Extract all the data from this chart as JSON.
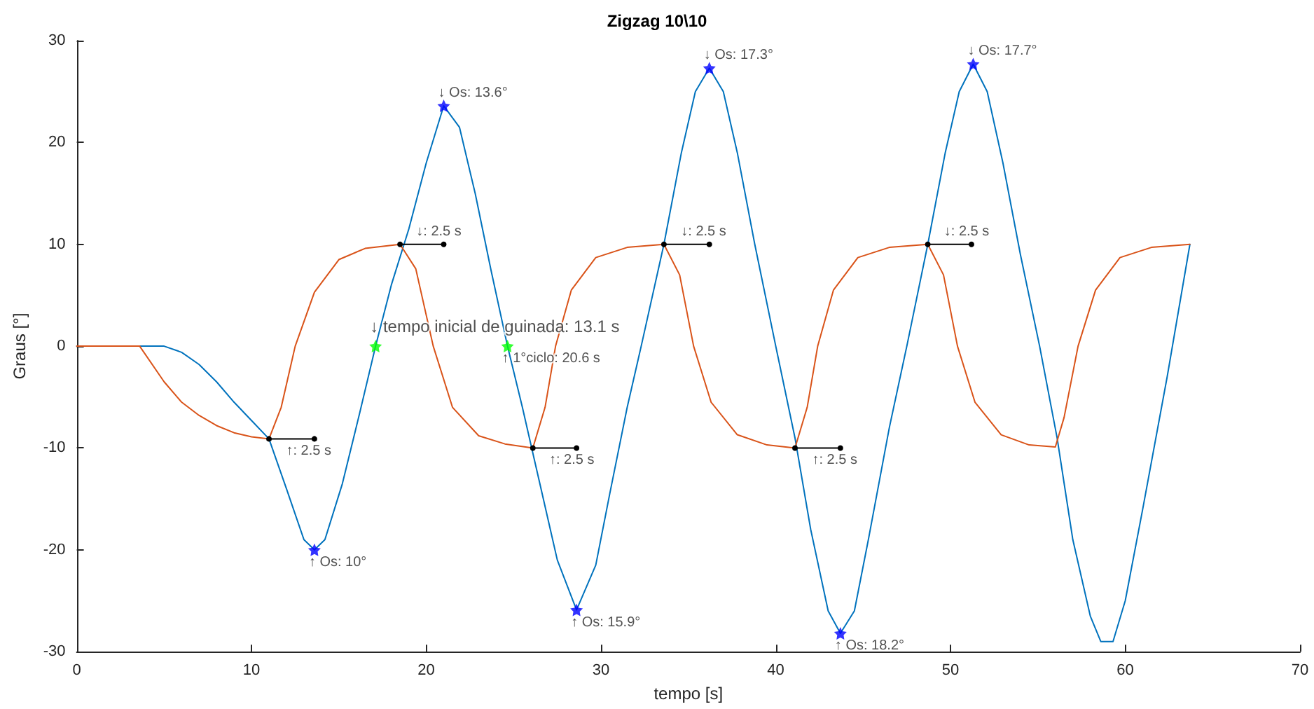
{
  "chart_data": {
    "type": "line",
    "title": "Zigzag 10\\10",
    "xlabel": "tempo [s]",
    "ylabel": "Graus [°]",
    "xlim": [
      0,
      70
    ],
    "xticks": [
      0,
      10,
      20,
      30,
      40,
      50,
      60,
      70
    ],
    "ylim": [
      -30,
      30
    ],
    "yticks": [
      -30,
      -20,
      -10,
      0,
      10,
      20,
      30
    ],
    "grid": false,
    "line_style": "solid",
    "series": [
      {
        "color": "#0072bd",
        "marker": "none",
        "x": [
          0,
          3,
          5,
          6,
          7,
          8,
          9,
          10,
          11,
          12,
          13,
          13.6,
          14.2,
          15.2,
          16.2,
          17.1,
          18,
          19,
          20,
          21,
          21.9,
          22.8,
          23.7,
          24.65,
          25.5,
          26.5,
          27.5,
          28.6,
          29.7,
          30.5,
          31.5,
          32.3,
          33.6,
          34.6,
          35.4,
          36.2,
          37,
          37.8,
          38.8,
          40,
          41.1,
          42,
          43,
          43.7,
          44.5,
          45.3,
          46.5,
          47.5,
          48.7,
          49.7,
          50.5,
          51.3,
          52.1,
          53,
          54,
          55.1,
          56.1,
          57,
          58,
          58.6,
          59.3,
          60,
          61,
          62.4,
          63.7
        ],
        "values": [
          0,
          0,
          0,
          -0.6,
          -1.8,
          -3.5,
          -5.5,
          -7.3,
          -9.1,
          -14,
          -19,
          -20,
          -19,
          -13.5,
          -6.5,
          0,
          6,
          11.5,
          18,
          23.6,
          21.5,
          15,
          7.5,
          0,
          -6,
          -13.5,
          -21,
          -25.9,
          -21.5,
          -14.5,
          -6,
          0,
          10,
          19,
          25,
          27.3,
          25,
          19,
          10,
          0,
          -9,
          -18,
          -26,
          -28.2,
          -26,
          -19,
          -8,
          0,
          10,
          19,
          25,
          27.7,
          25,
          18,
          9,
          0,
          -9,
          -19,
          -26.5,
          -29,
          -29,
          -25,
          -16,
          -3,
          10
        ]
      },
      {
        "color": "#d95319",
        "marker": "none",
        "x": [
          0,
          3.6,
          5,
          6,
          7,
          8,
          9,
          10,
          11,
          11.7,
          12.5,
          13.6,
          15,
          16.5,
          18.5,
          19.4,
          20.4,
          21.5,
          23,
          24.5,
          26.1,
          26.8,
          27.4,
          28.3,
          29.7,
          31.5,
          33.6,
          34.5,
          35.3,
          36.3,
          37.8,
          39.5,
          41.1,
          41.8,
          42.4,
          43.3,
          44.7,
          46.5,
          48.7,
          49.6,
          50.4,
          51.4,
          52.9,
          54.5,
          56,
          56.5,
          57.3,
          58.3,
          59.7,
          61.5,
          63.7
        ],
        "values": [
          0,
          0,
          -3.5,
          -5.5,
          -6.8,
          -7.8,
          -8.5,
          -8.9,
          -9.1,
          -6,
          0,
          5.3,
          8.5,
          9.6,
          10,
          7.6,
          0,
          -6,
          -8.8,
          -9.6,
          -10,
          -6,
          0,
          5.5,
          8.7,
          9.7,
          10,
          7,
          0,
          -5.5,
          -8.7,
          -9.7,
          -10,
          -6,
          0,
          5.5,
          8.7,
          9.7,
          10,
          7,
          0,
          -5.5,
          -8.7,
          -9.7,
          -9.9,
          -7,
          0,
          5.5,
          8.7,
          9.7,
          10
        ]
      },
      {
        "type": "scatter",
        "color": "#0000ff",
        "marker": "star",
        "x": [
          13.6,
          21.0,
          28.6,
          36.2,
          43.7,
          51.3
        ],
        "values": [
          -20,
          23.6,
          -25.9,
          27.3,
          -28.2,
          27.7
        ]
      },
      {
        "type": "scatter",
        "color": "#00ff00",
        "marker": "star",
        "x": [
          17.1,
          24.65
        ],
        "values": [
          0,
          0
        ]
      },
      {
        "type": "line",
        "color": "#000000",
        "marker": "circle",
        "x": [
          11.0,
          13.6
        ],
        "values": [
          -9.1,
          -9.1
        ]
      },
      {
        "type": "line",
        "color": "#000000",
        "marker": "circle",
        "x": [
          18.5,
          21.0
        ],
        "values": [
          10,
          10
        ]
      },
      {
        "type": "line",
        "color": "#000000",
        "marker": "circle",
        "x": [
          26.1,
          28.6
        ],
        "values": [
          -10,
          -10
        ]
      },
      {
        "type": "line",
        "color": "#000000",
        "marker": "circle",
        "x": [
          33.6,
          36.2
        ],
        "values": [
          10,
          10
        ]
      },
      {
        "type": "line",
        "color": "#000000",
        "marker": "circle",
        "x": [
          41.1,
          43.7
        ],
        "values": [
          -10,
          -10
        ]
      },
      {
        "type": "line",
        "color": "#000000",
        "marker": "circle",
        "x": [
          48.7,
          51.2
        ],
        "values": [
          10,
          10
        ]
      }
    ],
    "annotations": [
      {
        "text": "↓: 2.5 s",
        "x": 19.75,
        "y": 10
      },
      {
        "text": "↓: 2.5 s",
        "x": 34.9,
        "y": 10
      },
      {
        "text": "↓: 2.5 s",
        "x": 49.95,
        "y": 10
      },
      {
        "text": "↑: 2.5 s",
        "x": 12.3,
        "y": -9.1
      },
      {
        "text": "↑: 2.5 s",
        "x": 27.35,
        "y": -10
      },
      {
        "text": "↑: 2.5 s",
        "x": 42.4,
        "y": -10
      },
      {
        "text": "↑ Os: 10°",
        "x": 13.6,
        "y": -20
      },
      {
        "text": "↓ Os: 13.6°",
        "x": 21.0,
        "y": 23.6
      },
      {
        "text": "↑ Os: 15.9°",
        "x": 28.6,
        "y": -25.9
      },
      {
        "text": "↓ Os: 17.3°",
        "x": 36.2,
        "y": 27.3
      },
      {
        "text": "↑ Os: 18.2°",
        "x": 43.7,
        "y": -28.2
      },
      {
        "text": "↓ Os: 17.7°",
        "x": 51.3,
        "y": 27.7
      },
      {
        "text": "↓ tempo inicial de guinada: 13.1 s",
        "x": 17.1,
        "y": 0
      },
      {
        "text": "↑ 1°ciclo: 20.6 s",
        "x": 24.65,
        "y": 0
      }
    ]
  }
}
